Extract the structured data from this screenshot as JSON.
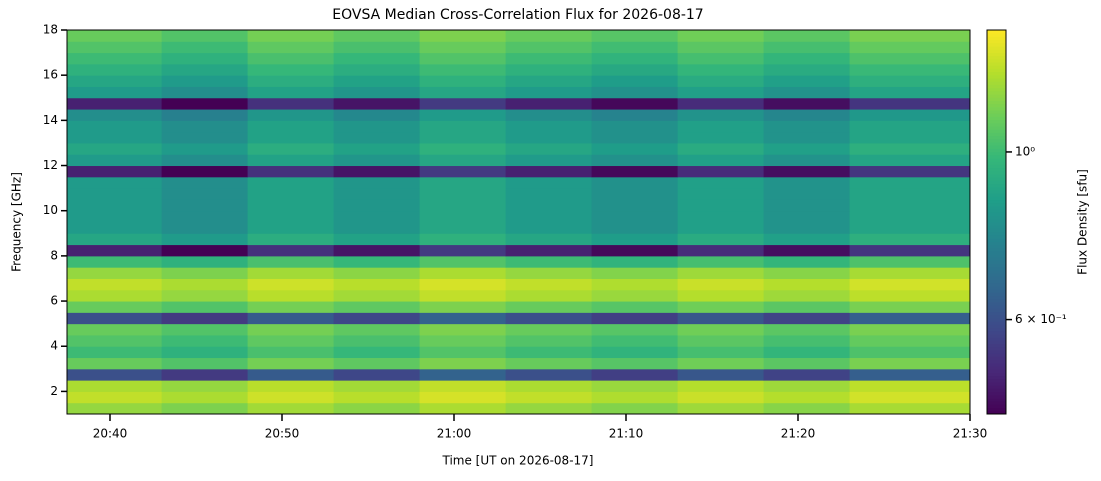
{
  "chart_data": {
    "type": "heatmap",
    "title": "EOVSA Median Cross-Correlation Flux for 2026-08-17",
    "xlabel": "Time [UT on 2026-08-17]",
    "ylabel": "Frequency [GHz]",
    "colorbar_label": "Flux Density [sfu]",
    "colormap": [
      "#440154",
      "#482878",
      "#3e4989",
      "#31688e",
      "#26828e",
      "#1f9e89",
      "#35b779",
      "#6ece58",
      "#b5de2b",
      "#fde725"
    ],
    "color_scale": "log",
    "clim": [
      0.45,
      1.45
    ],
    "cticks": [
      {
        "value": 0.6,
        "label": "6 × 10⁻¹"
      },
      {
        "value": 1,
        "label": "10⁰"
      }
    ],
    "xlim": [
      1237.5,
      1290
    ],
    "xticks": [
      {
        "value": 1240,
        "label": "20:40"
      },
      {
        "value": 1250,
        "label": "20:50"
      },
      {
        "value": 1260,
        "label": "21:00"
      },
      {
        "value": 1270,
        "label": "21:10"
      },
      {
        "value": 1280,
        "label": "21:20"
      },
      {
        "value": 1290,
        "label": "21:30"
      }
    ],
    "ylim": [
      1,
      18
    ],
    "yticks": [
      2,
      4,
      6,
      8,
      10,
      12,
      14,
      16,
      18
    ],
    "x_bins": [
      1237.5,
      1243,
      1248,
      1253,
      1258,
      1263,
      1268,
      1273,
      1278,
      1283,
      1290
    ],
    "y_bins": [
      1,
      1.5,
      2,
      2.5,
      3,
      3.5,
      4,
      4.5,
      5,
      5.5,
      6,
      6.5,
      7,
      7.5,
      8,
      8.5,
      9,
      9.5,
      10,
      10.5,
      11,
      11.5,
      12,
      12.5,
      13,
      13.5,
      14,
      14.5,
      15,
      15.5,
      16,
      16.5,
      17,
      17.5,
      18
    ],
    "z": [
      [
        1.2,
        1.15,
        1.23,
        1.18,
        1.25,
        1.2,
        1.16,
        1.22,
        1.17,
        1.24
      ],
      [
        1.3,
        1.25,
        1.33,
        1.28,
        1.35,
        1.3,
        1.26,
        1.32,
        1.27,
        1.34
      ],
      [
        1.25,
        1.2,
        1.28,
        1.23,
        1.3,
        1.25,
        1.21,
        1.27,
        1.22,
        1.29
      ],
      [
        0.6,
        0.55,
        0.63,
        0.58,
        0.65,
        0.6,
        0.56,
        0.62,
        0.57,
        0.64
      ],
      [
        1.1,
        1.05,
        1.13,
        1.08,
        1.15,
        1.1,
        1.06,
        1.12,
        1.07,
        1.14
      ],
      [
        1,
        0.95,
        1.03,
        0.98,
        1.05,
        1,
        0.96,
        1.02,
        0.97,
        1.04
      ],
      [
        1.05,
        1,
        1.08,
        1.03,
        1.1,
        1.05,
        1.01,
        1.07,
        1.02,
        1.09
      ],
      [
        1.1,
        1.05,
        1.13,
        1.08,
        1.15,
        1.1,
        1.06,
        1.12,
        1.07,
        1.14
      ],
      [
        0.6,
        0.55,
        0.63,
        0.58,
        0.65,
        0.6,
        0.56,
        0.62,
        0.57,
        0.64
      ],
      [
        1.1,
        1.05,
        1.13,
        1.08,
        1.15,
        1.1,
        1.06,
        1.12,
        1.07,
        1.14
      ],
      [
        1.25,
        1.2,
        1.28,
        1.23,
        1.3,
        1.25,
        1.21,
        1.27,
        1.22,
        1.29
      ],
      [
        1.3,
        1.25,
        1.33,
        1.28,
        1.35,
        1.3,
        1.26,
        1.32,
        1.27,
        1.34
      ],
      [
        1.2,
        1.15,
        1.23,
        1.18,
        1.25,
        1.2,
        1.16,
        1.22,
        1.17,
        1.24
      ],
      [
        1,
        0.95,
        1.03,
        0.98,
        1.05,
        1,
        0.96,
        1.02,
        0.97,
        1.04
      ],
      [
        0.5,
        0.45,
        0.53,
        0.48,
        0.55,
        0.5,
        0.46,
        0.52,
        0.47,
        0.54
      ],
      [
        0.9,
        0.85,
        0.93,
        0.88,
        0.95,
        0.9,
        0.86,
        0.92,
        0.87,
        0.94
      ],
      [
        0.85,
        0.8,
        0.88,
        0.83,
        0.9,
        0.85,
        0.81,
        0.87,
        0.82,
        0.89
      ],
      [
        0.85,
        0.8,
        0.88,
        0.83,
        0.9,
        0.85,
        0.81,
        0.87,
        0.82,
        0.89
      ],
      [
        0.85,
        0.8,
        0.88,
        0.83,
        0.9,
        0.85,
        0.81,
        0.87,
        0.82,
        0.89
      ],
      [
        0.85,
        0.8,
        0.88,
        0.83,
        0.9,
        0.85,
        0.81,
        0.87,
        0.82,
        0.89
      ],
      [
        0.85,
        0.8,
        0.88,
        0.83,
        0.9,
        0.85,
        0.81,
        0.87,
        0.82,
        0.89
      ],
      [
        0.5,
        0.45,
        0.53,
        0.48,
        0.55,
        0.5,
        0.46,
        0.52,
        0.47,
        0.54
      ],
      [
        0.85,
        0.8,
        0.88,
        0.83,
        0.9,
        0.85,
        0.81,
        0.87,
        0.82,
        0.89
      ],
      [
        0.9,
        0.85,
        0.93,
        0.88,
        0.95,
        0.9,
        0.86,
        0.92,
        0.87,
        0.94
      ],
      [
        0.85,
        0.8,
        0.88,
        0.83,
        0.9,
        0.85,
        0.81,
        0.87,
        0.82,
        0.89
      ],
      [
        0.85,
        0.8,
        0.88,
        0.83,
        0.9,
        0.85,
        0.81,
        0.87,
        0.82,
        0.89
      ],
      [
        0.8,
        0.75,
        0.83,
        0.78,
        0.85,
        0.8,
        0.76,
        0.82,
        0.77,
        0.84
      ],
      [
        0.5,
        0.45,
        0.53,
        0.48,
        0.55,
        0.5,
        0.46,
        0.52,
        0.47,
        0.54
      ],
      [
        0.85,
        0.8,
        0.88,
        0.83,
        0.9,
        0.85,
        0.81,
        0.87,
        0.82,
        0.89
      ],
      [
        0.9,
        0.85,
        0.93,
        0.88,
        0.95,
        0.9,
        0.86,
        0.92,
        0.87,
        0.94
      ],
      [
        0.95,
        0.9,
        0.98,
        0.93,
        1,
        0.95,
        0.91,
        0.97,
        0.92,
        0.99
      ],
      [
        1,
        0.95,
        1.03,
        0.98,
        1.05,
        1,
        0.96,
        1.02,
        0.97,
        1.04
      ],
      [
        1.05,
        1,
        1.08,
        1.03,
        1.1,
        1.05,
        1.01,
        1.07,
        1.02,
        1.09
      ],
      [
        1.1,
        1.05,
        1.13,
        1.08,
        1.15,
        1.1,
        1.06,
        1.12,
        1.07,
        1.14
      ]
    ]
  }
}
